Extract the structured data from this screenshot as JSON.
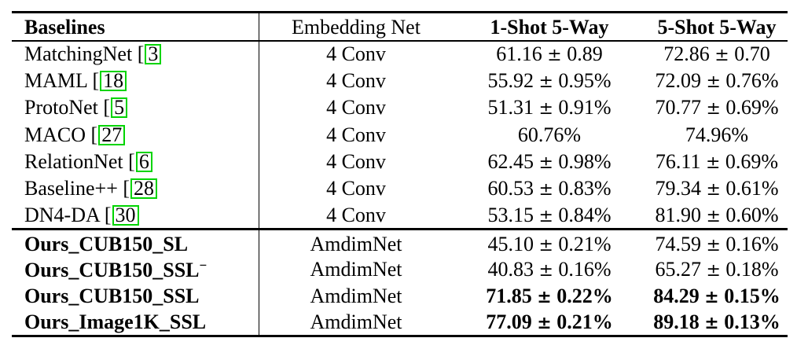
{
  "table": {
    "headers": [
      "Baselines",
      "Embedding Net",
      "1-Shot 5-Way",
      "5-Shot 5-Way"
    ],
    "baselines": [
      {
        "name": "MatchingNet",
        "cite": "3",
        "net": "4 Conv",
        "one_shot": "61.16 ± 0.89",
        "five_shot": "72.86 ± 0.70"
      },
      {
        "name": "MAML",
        "cite": "18",
        "net": "4 Conv",
        "one_shot": "55.92 ± 0.95%",
        "five_shot": "72.09 ± 0.76%"
      },
      {
        "name": "ProtoNet",
        "cite": "5",
        "net": "4 Conv",
        "one_shot": "51.31 ± 0.91%",
        "five_shot": "70.77 ± 0.69%"
      },
      {
        "name": "MACO",
        "cite": "27",
        "net": "4 Conv",
        "one_shot": "60.76%",
        "five_shot": "74.96%"
      },
      {
        "name": "RelationNet",
        "cite": "6",
        "net": "4 Conv",
        "one_shot": "62.45 ± 0.98%",
        "five_shot": "76.11 ± 0.69%"
      },
      {
        "name": "Baseline++",
        "cite": "28",
        "net": "4 Conv",
        "one_shot": "60.53 ± 0.83%",
        "five_shot": "79.34 ± 0.61%"
      },
      {
        "name": "DN4-DA",
        "cite": "30",
        "net": "4 Conv",
        "one_shot": "53.15 ± 0.84%",
        "five_shot": "81.90 ± 0.60%"
      }
    ],
    "ours": [
      {
        "name": "Ours_CUB150_SL",
        "sup": "",
        "net": "AmdimNet",
        "one_shot": "45.10 ± 0.21%",
        "five_shot": "74.59 ± 0.16%",
        "bold_values": false
      },
      {
        "name": "Ours_CUB150_SSL",
        "sup": "−",
        "net": "AmdimNet",
        "one_shot": "40.83 ± 0.16%",
        "five_shot": "65.27 ± 0.18%",
        "bold_values": false
      },
      {
        "name": "Ours_CUB150_SSL",
        "sup": "",
        "net": "AmdimNet",
        "one_shot": "71.85 ± 0.22%",
        "five_shot": "84.29 ± 0.15%",
        "bold_values": true
      },
      {
        "name": "Ours_Image1K_SSL",
        "sup": "",
        "net": "AmdimNet",
        "one_shot": "77.09 ± 0.21%",
        "five_shot": "89.18 ± 0.13%",
        "bold_values": true
      }
    ],
    "cite_border_color": "#00d400"
  }
}
